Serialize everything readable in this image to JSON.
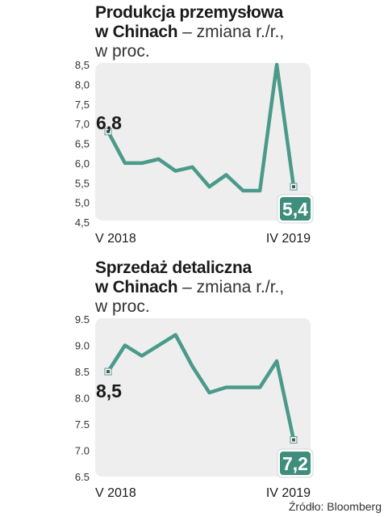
{
  "chart_data": [
    {
      "type": "line",
      "title_bold": "Produkcja przemysłowa",
      "title_bold_2": "w Chinach",
      "title_light": " – zmiana r./r.,",
      "title_light_2": "w proc.",
      "ylim": [
        4.5,
        8.5
      ],
      "yticks": [
        "8,5",
        "8,0",
        "7,5",
        "7,0",
        "6,5",
        "6,0",
        "5,5",
        "5,0",
        "4,5"
      ],
      "ytick_values": [
        8.5,
        8.0,
        7.5,
        7.0,
        6.5,
        6.0,
        5.5,
        5.0,
        4.5
      ],
      "xlabels": [
        "V 2018",
        "IV 2019"
      ],
      "values": [
        6.8,
        6.0,
        6.0,
        6.1,
        5.8,
        5.9,
        5.4,
        5.7,
        5.3,
        5.3,
        8.5,
        5.4
      ],
      "start_label": "6,8",
      "end_label": "5,4",
      "grid": false
    },
    {
      "type": "line",
      "title_bold": "Sprzedaż detaliczna",
      "title_bold_2": "w Chinach",
      "title_light": " – zmiana  r./r.,",
      "title_light_2": "w proc.",
      "ylim": [
        6.5,
        9.5
      ],
      "yticks": [
        "9.5",
        "9.0",
        "8.5",
        "8.0",
        "7.5",
        "7.0",
        "6.5"
      ],
      "ytick_values": [
        9.5,
        9.0,
        8.5,
        8.0,
        7.5,
        7.0,
        6.5
      ],
      "xlabels": [
        "V 2018",
        "IV 2019"
      ],
      "values": [
        8.5,
        9.0,
        8.8,
        9.0,
        9.2,
        8.6,
        8.1,
        8.2,
        8.2,
        8.2,
        8.7,
        7.2
      ],
      "start_label": "8,5",
      "end_label": "7,2",
      "grid": false
    }
  ],
  "colors": {
    "line": "#4a9a8a",
    "badge": "#3f8d7c",
    "panel": "#eeeeee"
  },
  "source": "Źródło: Bloomberg"
}
